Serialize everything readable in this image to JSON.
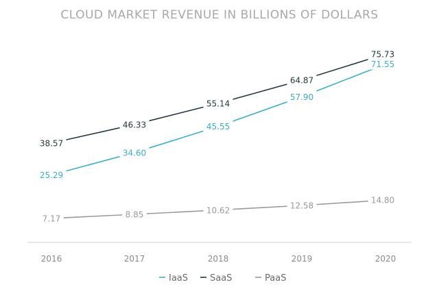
{
  "chart_data": {
    "type": "line",
    "title": "CLOUD MARKET REVENUE IN BILLIONS OF DOLLARS",
    "categories": [
      "2016",
      "2017",
      "2018",
      "2019",
      "2020"
    ],
    "series": [
      {
        "name": "IaaS",
        "values": [
          25.29,
          34.6,
          45.55,
          57.9,
          71.55
        ],
        "labels": [
          "25.29",
          "34.60",
          "45.55",
          "57.90",
          "71.55"
        ],
        "color": "#3aaecd"
      },
      {
        "name": "SaaS",
        "values": [
          38.57,
          46.33,
          55.14,
          64.87,
          75.73
        ],
        "labels": [
          "38.57",
          "46.33",
          "55.14",
          "64.87",
          "75.73"
        ],
        "color": "#1f3a3f"
      },
      {
        "name": "PaaS",
        "values": [
          7.17,
          8.85,
          10.62,
          12.58,
          14.8
        ],
        "labels": [
          "7.17",
          "8.85",
          "10.62",
          "12.58",
          "14.80"
        ],
        "color": "#9a9a9a"
      }
    ],
    "xlabel": "",
    "ylabel": "",
    "grid": false,
    "legend": "bottom-center",
    "legend_entries": [
      "IaaS",
      "SaaS",
      "PaaS"
    ],
    "colors": {
      "title": "#a8a8a8",
      "axis": "#d0d0d0",
      "tick": "#8a8a8a"
    }
  }
}
